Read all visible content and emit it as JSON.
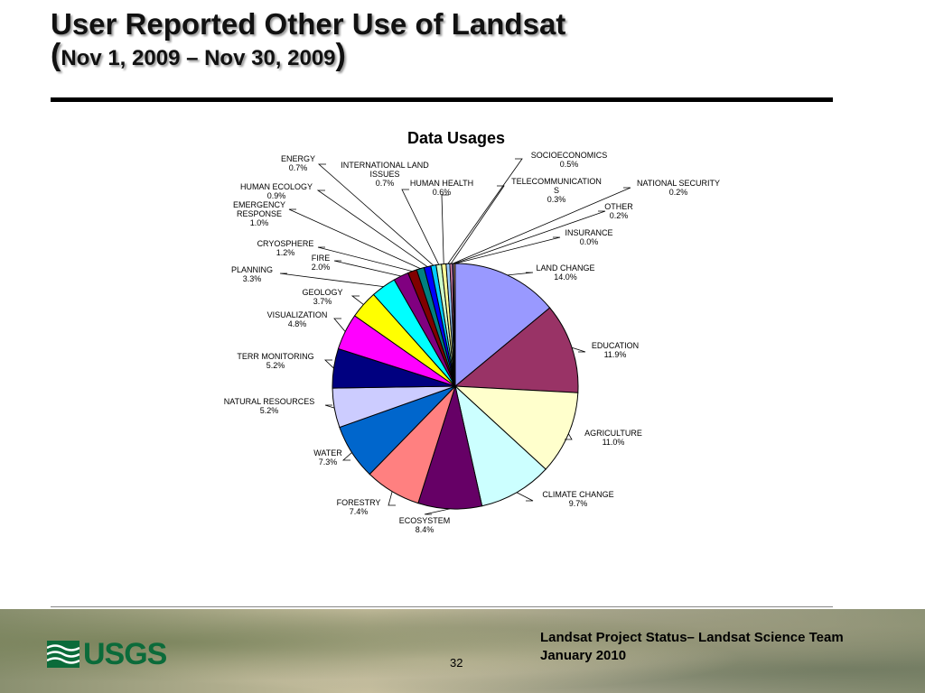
{
  "slide": {
    "title_line1": "User Reported Other Use of Landsat",
    "title_line2_open": "(",
    "title_line2": "Nov 1, 2009 – Nov 30, 2009",
    "title_line2_close": ")",
    "page_number": "32",
    "footer_line1": "Landsat Project Status– Landsat Science Team",
    "footer_line2": "January 2010",
    "logo_text": "USGS"
  },
  "chart_data": {
    "type": "pie",
    "title": "Data Usages",
    "start_angle_deg": 0,
    "direction": "clockwise",
    "slices": [
      {
        "name": "LAND CHANGE",
        "value": 14.0,
        "label": "14.0%",
        "color": "#9999ff"
      },
      {
        "name": "EDUCATION",
        "value": 11.9,
        "label": "11.9%",
        "color": "#993366"
      },
      {
        "name": "AGRICULTURE",
        "value": 11.0,
        "label": "11.0%",
        "color": "#ffffcc"
      },
      {
        "name": "CLIMATE CHANGE",
        "value": 9.7,
        "label": "9.7%",
        "color": "#ccffff"
      },
      {
        "name": "ECOSYSTEM",
        "value": 8.4,
        "label": "8.4%",
        "color": "#660066"
      },
      {
        "name": "FORESTRY",
        "value": 7.4,
        "label": "7.4%",
        "color": "#ff8080"
      },
      {
        "name": "WATER",
        "value": 7.3,
        "label": "7.3%",
        "color": "#0066cc"
      },
      {
        "name": "NATURAL RESOURCES",
        "value": 5.2,
        "label": "5.2%",
        "color": "#ccccff"
      },
      {
        "name": "TERR MONITORING",
        "value": 5.2,
        "label": "5.2%",
        "color": "#000080"
      },
      {
        "name": "VISUALIZATION",
        "value": 4.8,
        "label": "4.8%",
        "color": "#ff00ff"
      },
      {
        "name": "GEOLOGY",
        "value": 3.7,
        "label": "3.7%",
        "color": "#ffff00"
      },
      {
        "name": "PLANNING",
        "value": 3.3,
        "label": "3.3%",
        "color": "#00ffff"
      },
      {
        "name": "FIRE",
        "value": 2.0,
        "label": "2.0%",
        "color": "#800080"
      },
      {
        "name": "CRYOSPHERE",
        "value": 1.2,
        "label": "1.2%",
        "color": "#800000"
      },
      {
        "name": "EMERGENCY RESPONSE",
        "value": 1.0,
        "label": "1.0%",
        "color": "#008080"
      },
      {
        "name": "HUMAN ECOLOGY",
        "value": 0.9,
        "label": "0.9%",
        "color": "#0000ff"
      },
      {
        "name": "ENERGY",
        "value": 0.7,
        "label": "0.7%",
        "color": "#00ccff"
      },
      {
        "name": "INTERNATIONAL LAND ISSUES",
        "value": 0.7,
        "label": "0.7%",
        "color": "#ccffcc"
      },
      {
        "name": "HUMAN HEALTH",
        "value": 0.6,
        "label": "0.6%",
        "color": "#ffff99"
      },
      {
        "name": "SOCIOECONOMICS",
        "value": 0.5,
        "label": "0.5%",
        "color": "#99ccff"
      },
      {
        "name": "TELECOMMUNICATIONS",
        "value": 0.3,
        "label": "0.3%",
        "color": "#ff99cc"
      },
      {
        "name": "NATIONAL SECURITY",
        "value": 0.2,
        "label": "0.2%",
        "color": "#cc99ff"
      },
      {
        "name": "OTHER",
        "value": 0.2,
        "label": "0.2%",
        "color": "#ffcc99"
      },
      {
        "name": "INSURANCE",
        "value": 0.0,
        "label": "0.0%",
        "color": "#3366ff"
      }
    ]
  }
}
